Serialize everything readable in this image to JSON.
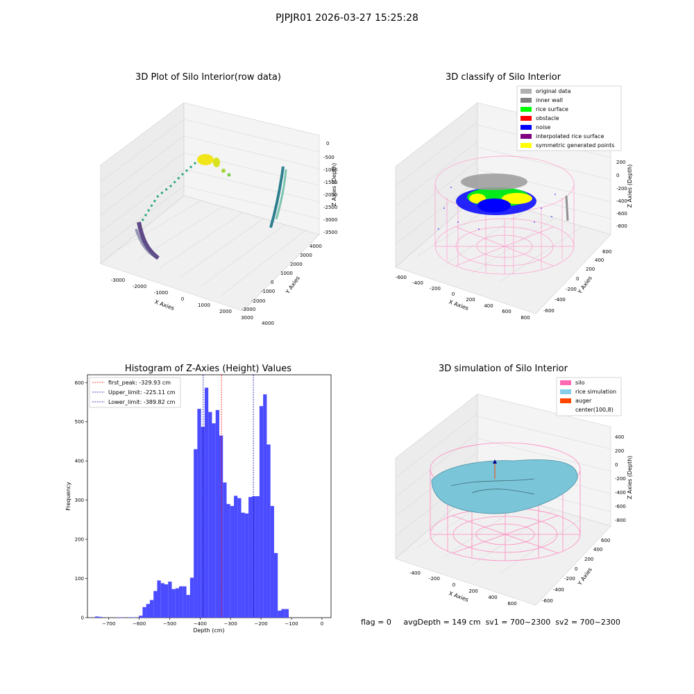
{
  "figure_title": "PJPJR01 2026-03-27 15:25:28",
  "panels": {
    "raw": {
      "title": "3D Plot of Silo Interior(row data)",
      "xlabel": "X Axies",
      "ylabel": "Y Axies",
      "zlabel": "Z Axies (Depth)",
      "x_ticks": [
        "-3000",
        "-2000",
        "-1000",
        "0",
        "1000",
        "2000",
        "3000",
        "4000"
      ],
      "y_ticks": [
        "-3000",
        "-2000",
        "-1000",
        "0",
        "1000",
        "2000",
        "3000",
        "4000"
      ],
      "z_ticks": [
        "0",
        "-500",
        "-1000",
        "-1500",
        "-2000",
        "-2500",
        "-3000",
        "-3500"
      ]
    },
    "classify": {
      "title": "3D classify of Silo Interior",
      "xlabel": "X Axies",
      "ylabel": "Y Axies",
      "zlabel": "Z Axies (Depth)",
      "x_ticks": [
        "-600",
        "-400",
        "-200",
        "0",
        "200",
        "400",
        "600",
        "800"
      ],
      "y_ticks": [
        "-600",
        "-400",
        "-200",
        "0",
        "200",
        "400",
        "600"
      ],
      "z_ticks": [
        "200",
        "0",
        "-200",
        "-400",
        "-600",
        "-800"
      ],
      "legend": [
        {
          "label": "original data",
          "color": "#b0b0b0"
        },
        {
          "label": "inner wall",
          "color": "#808080"
        },
        {
          "label": "rice surface",
          "color": "#00ff00"
        },
        {
          "label": "obstacle",
          "color": "#ff0000"
        },
        {
          "label": "noise",
          "color": "#0000ff"
        },
        {
          "label": "interpolated rice surface",
          "color": "#800080"
        },
        {
          "label": "symmetric generated points",
          "color": "#ffff00"
        }
      ]
    },
    "simulation": {
      "title": "3D simulation of Silo Interior",
      "xlabel": "X Axies",
      "ylabel": "Y Axies",
      "zlabel": "Z Axies (Depth)",
      "x_ticks": [
        "-400",
        "-200",
        "0",
        "200",
        "400",
        "600"
      ],
      "y_ticks": [
        "-600",
        "-400",
        "-200",
        "0",
        "200",
        "400",
        "600"
      ],
      "z_ticks": [
        "400",
        "200",
        "0",
        "-200",
        "-400",
        "-600",
        "-800"
      ],
      "legend": [
        {
          "label": "silo",
          "color": "#ff69b4"
        },
        {
          "label": "rice simulation",
          "color": "#87ceeb"
        },
        {
          "label": "auger",
          "color": "#ff4500"
        },
        {
          "label": "center(100,8)",
          "color": "#ffffff"
        }
      ]
    }
  },
  "chart_data": {
    "type": "bar",
    "title": "Histogram of Z-Axies (Height) Values",
    "xlabel": "Depth (cm)",
    "ylabel": "Frequency",
    "xlim": [
      -770,
      30
    ],
    "ylim": [
      0,
      620
    ],
    "x_ticks": [
      -700,
      -600,
      -500,
      -400,
      -300,
      -200,
      -100,
      0
    ],
    "y_ticks": [
      0,
      100,
      200,
      300,
      400,
      500,
      600
    ],
    "bar_color": "#4b4bff",
    "bin_width": 12,
    "bins": [
      [
        -745,
        3
      ],
      [
        -733,
        2
      ],
      [
        -673,
        1
      ],
      [
        -661,
        1
      ],
      [
        -637,
        1
      ],
      [
        -625,
        1
      ],
      [
        -601,
        5
      ],
      [
        -589,
        27
      ],
      [
        -577,
        35
      ],
      [
        -565,
        45
      ],
      [
        -553,
        68
      ],
      [
        -541,
        95
      ],
      [
        -529,
        88
      ],
      [
        -517,
        85
      ],
      [
        -505,
        92
      ],
      [
        -493,
        73
      ],
      [
        -481,
        75
      ],
      [
        -469,
        80
      ],
      [
        -457,
        80
      ],
      [
        -445,
        58
      ],
      [
        -433,
        102
      ],
      [
        -421,
        430
      ],
      [
        -409,
        533
      ],
      [
        -397,
        487
      ],
      [
        -385,
        587
      ],
      [
        -373,
        525
      ],
      [
        -361,
        496
      ],
      [
        -349,
        530
      ],
      [
        -337,
        465
      ],
      [
        -325,
        345
      ],
      [
        -313,
        290
      ],
      [
        -301,
        285
      ],
      [
        -289,
        311
      ],
      [
        -277,
        305
      ],
      [
        -265,
        268
      ],
      [
        -253,
        266
      ],
      [
        -241,
        308
      ],
      [
        -229,
        310
      ],
      [
        -217,
        310
      ],
      [
        -205,
        540
      ],
      [
        -193,
        570
      ],
      [
        -181,
        442
      ],
      [
        -169,
        285
      ],
      [
        -157,
        165
      ],
      [
        -145,
        18
      ],
      [
        -133,
        22
      ],
      [
        -121,
        22
      ]
    ],
    "vlines": [
      {
        "label": "first_peak: -329.93 cm",
        "x": -329.93,
        "color": "#ff0000"
      },
      {
        "label": "Upper_limit: -225.11 cm",
        "x": -225.11,
        "color": "#0000aa"
      },
      {
        "label": "Lower_limit: -389.82 cm",
        "x": -389.82,
        "color": "#0000aa"
      }
    ]
  },
  "footer": {
    "flag": "flag = 0",
    "avg_depth": "avgDepth = 149 cm",
    "sv1": "sv1 = 700~2300",
    "sv2": "sv2 = 700~2300"
  }
}
